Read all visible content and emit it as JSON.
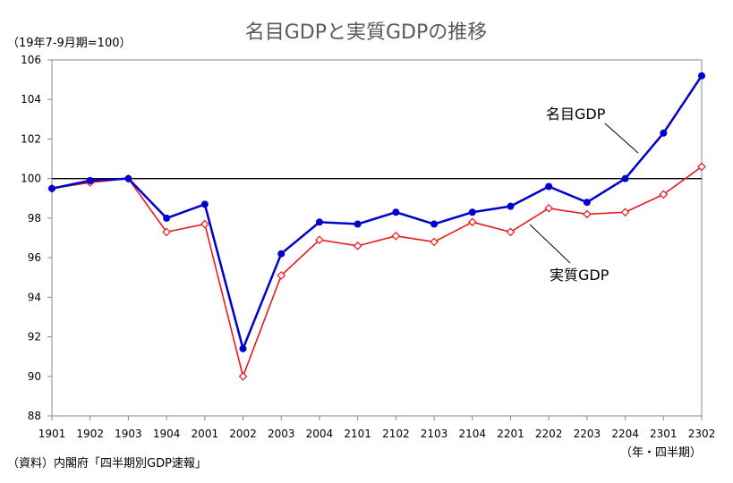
{
  "chart_data": {
    "type": "line",
    "title": "名目GDPと実質GDPの推移",
    "y_unit_label": "（19年7-9月期=100）",
    "x_unit_label": "（年・四半期）",
    "source": "（資料）内閣府「四半期別GDP速報」",
    "categories": [
      "1901",
      "1902",
      "1903",
      "1904",
      "2001",
      "2002",
      "2003",
      "2004",
      "2101",
      "2102",
      "2103",
      "2104",
      "2201",
      "2202",
      "2203",
      "2204",
      "2301",
      "2302"
    ],
    "ylim": [
      88,
      106
    ],
    "yticks": [
      "88",
      "90",
      "92",
      "94",
      "96",
      "98",
      "100",
      "102",
      "104",
      "106"
    ],
    "reference_line": 100,
    "grid": false,
    "series": [
      {
        "name": "名目GDP",
        "color": "#0000cc",
        "marker": "filled-circle",
        "values": [
          99.5,
          99.9,
          100.0,
          98.0,
          98.7,
          91.4,
          96.2,
          97.8,
          97.7,
          98.3,
          97.7,
          98.3,
          98.6,
          99.6,
          98.8,
          100.0,
          102.3,
          105.2
        ]
      },
      {
        "name": "実質GDP",
        "color": "#e8191e",
        "marker": "open-diamond",
        "values": [
          99.5,
          99.8,
          100.0,
          97.3,
          97.7,
          90.0,
          95.1,
          96.9,
          96.6,
          97.1,
          96.8,
          97.8,
          97.3,
          98.5,
          98.2,
          98.3,
          99.2,
          100.6
        ]
      }
    ]
  }
}
